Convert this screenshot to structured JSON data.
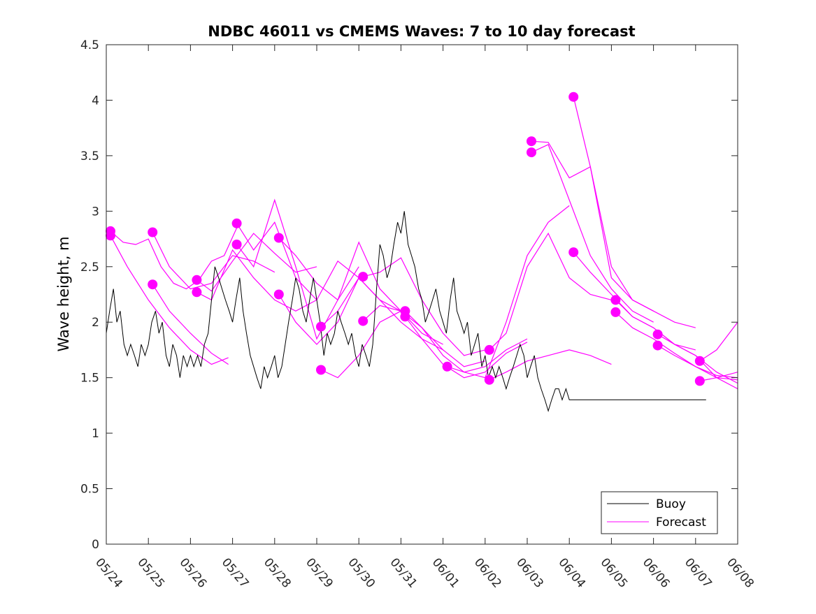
{
  "chart_data": {
    "type": "line",
    "title": "NDBC 46011 vs CMEMS Waves: 7 to 10 day forecast",
    "xlabel": "",
    "ylabel": "Wave height, m",
    "xlim": [
      "05/24",
      "06/08"
    ],
    "ylim": [
      0,
      4.5
    ],
    "grid": false,
    "legend": {
      "placement": "bottom-right",
      "entries": [
        "Buoy",
        "Forecast"
      ]
    },
    "x_tick_labels": [
      "05/24",
      "05/25",
      "05/26",
      "05/27",
      "05/28",
      "05/29",
      "05/30",
      "05/31",
      "06/01",
      "06/02",
      "06/03",
      "06/04",
      "06/05",
      "06/06",
      "06/07",
      "06/08"
    ],
    "y_ticks": [
      0,
      0.5,
      1,
      1.5,
      2,
      2.5,
      3,
      3.5,
      4,
      4.5
    ],
    "y_tick_labels": [
      "0",
      "0.5",
      "1",
      "1.5",
      "2",
      "2.5",
      "3",
      "3.5",
      "4",
      "4.5"
    ],
    "x_unit": "days since 05/24",
    "colors": {
      "buoy": "#000000",
      "forecast": "#ff00ff"
    },
    "buoy": {
      "name": "Buoy",
      "x": [
        0,
        0.08,
        0.17,
        0.25,
        0.33,
        0.42,
        0.5,
        0.58,
        0.67,
        0.75,
        0.83,
        0.92,
        1.0,
        1.08,
        1.17,
        1.25,
        1.33,
        1.42,
        1.5,
        1.58,
        1.67,
        1.75,
        1.83,
        1.92,
        2.0,
        2.08,
        2.17,
        2.25,
        2.33,
        2.42,
        2.5,
        2.58,
        2.67,
        2.75,
        2.83,
        2.92,
        3.0,
        3.08,
        3.17,
        3.25,
        3.33,
        3.42,
        3.5,
        3.58,
        3.67,
        3.75,
        3.83,
        3.92,
        4.0,
        4.08,
        4.17,
        4.25,
        4.33,
        4.42,
        4.5,
        4.58,
        4.67,
        4.75,
        4.83,
        4.92,
        5.0,
        5.08,
        5.17,
        5.25,
        5.33,
        5.42,
        5.5,
        5.58,
        5.67,
        5.75,
        5.83,
        5.92,
        6.0,
        6.08,
        6.17,
        6.25,
        6.33,
        6.42,
        6.5,
        6.58,
        6.67,
        6.75,
        6.83,
        6.92,
        7.0,
        7.08,
        7.17,
        7.25,
        7.33,
        7.42,
        7.5,
        7.58,
        7.67,
        7.75,
        7.83,
        7.92,
        8.0,
        8.08,
        8.17,
        8.25,
        8.33,
        8.42,
        8.5,
        8.58,
        8.67,
        8.75,
        8.83,
        8.92,
        9.0,
        9.08,
        9.17,
        9.25,
        9.33,
        9.42,
        9.5,
        9.58,
        9.67,
        9.75,
        9.83,
        9.92,
        10.0,
        10.08,
        10.17,
        10.25,
        10.33,
        10.42,
        10.5,
        10.58,
        10.67,
        10.75,
        10.83,
        10.92,
        11.0,
        11.08,
        11.17,
        11.25,
        11.33,
        11.42,
        11.5,
        11.58,
        11.67,
        11.75,
        11.83,
        11.92,
        12.0,
        12.08,
        12.17,
        12.25,
        12.33,
        12.42,
        12.5,
        12.58,
        12.67,
        12.75,
        12.83,
        12.92,
        13.0,
        13.08,
        13.17,
        13.25,
        13.33,
        13.42,
        13.5,
        13.58,
        13.67,
        13.75,
        13.83,
        13.92,
        14.0,
        14.08,
        14.17,
        14.25
      ],
      "values": [
        1.9,
        2.1,
        2.3,
        2.0,
        2.1,
        1.8,
        1.7,
        1.8,
        1.7,
        1.6,
        1.8,
        1.7,
        1.8,
        2.0,
        2.1,
        1.9,
        2.0,
        1.7,
        1.6,
        1.8,
        1.7,
        1.5,
        1.7,
        1.6,
        1.7,
        1.6,
        1.7,
        1.6,
        1.8,
        1.9,
        2.2,
        2.5,
        2.4,
        2.3,
        2.2,
        2.1,
        2.0,
        2.2,
        2.4,
        2.1,
        1.9,
        1.7,
        1.6,
        1.5,
        1.4,
        1.6,
        1.5,
        1.6,
        1.7,
        1.5,
        1.6,
        1.8,
        2.0,
        2.2,
        2.4,
        2.3,
        2.1,
        2.0,
        2.2,
        2.4,
        2.2,
        2.0,
        1.7,
        1.9,
        1.8,
        1.9,
        2.1,
        2.0,
        1.9,
        1.8,
        1.9,
        1.7,
        1.6,
        1.8,
        1.7,
        1.6,
        1.8,
        2.3,
        2.7,
        2.6,
        2.4,
        2.5,
        2.7,
        2.9,
        2.8,
        3.0,
        2.7,
        2.6,
        2.5,
        2.3,
        2.2,
        2.0,
        2.1,
        2.2,
        2.3,
        2.1,
        2.0,
        1.9,
        2.2,
        2.4,
        2.1,
        2.0,
        1.9,
        2.0,
        1.7,
        1.8,
        1.9,
        1.6,
        1.7,
        1.5,
        1.6,
        1.5,
        1.6,
        1.5,
        1.4,
        1.5,
        1.6,
        1.7,
        1.8,
        1.7,
        1.5,
        1.6,
        1.7,
        1.5,
        1.4,
        1.3,
        1.2,
        1.3,
        1.4,
        1.4,
        1.3,
        1.4,
        1.3,
        1.3,
        1.3,
        1.3,
        1.3,
        1.3,
        1.3,
        1.3,
        1.3,
        1.3,
        1.3,
        1.3,
        1.3,
        1.3,
        1.3,
        1.3,
        1.3,
        1.3,
        1.3,
        1.3,
        1.3,
        1.3,
        1.3,
        1.3,
        1.3,
        1.3,
        1.3,
        1.3,
        1.3,
        1.3,
        1.3,
        1.3,
        1.3,
        1.3,
        1.3,
        1.3,
        1.3,
        1.3,
        1.3,
        1.3
      ]
    },
    "forecast_series": [
      {
        "name": "Forecast",
        "x": [
          0.1,
          0.4,
          0.7,
          1.0,
          1.3,
          1.6,
          1.9,
          2.2,
          2.5,
          2.8,
          3.1
        ],
        "values": [
          2.82,
          2.72,
          2.7,
          2.75,
          2.5,
          2.35,
          2.3,
          2.38,
          2.55,
          2.6,
          2.85
        ]
      },
      {
        "name": "Forecast",
        "x": [
          0.1,
          0.5,
          1.0,
          1.5,
          2.0,
          2.5,
          2.9
        ],
        "values": [
          2.78,
          2.5,
          2.2,
          1.95,
          1.75,
          1.62,
          1.68
        ]
      },
      {
        "name": "Forecast",
        "x": [
          1.1,
          1.5,
          2.0,
          2.5,
          3.0,
          3.5,
          4.0
        ],
        "values": [
          2.81,
          2.5,
          2.3,
          2.35,
          2.6,
          2.55,
          2.45
        ]
      },
      {
        "name": "Forecast",
        "x": [
          1.1,
          1.5,
          2.0,
          2.5,
          2.9
        ],
        "values": [
          2.34,
          2.1,
          1.9,
          1.72,
          1.62
        ]
      },
      {
        "name": "Forecast",
        "x": [
          2.15,
          2.5,
          3.0,
          3.5,
          4.0,
          4.5,
          5.0
        ],
        "values": [
          2.38,
          2.28,
          2.55,
          2.8,
          2.62,
          2.45,
          2.5
        ]
      },
      {
        "name": "Forecast",
        "x": [
          2.15,
          2.5,
          3.0,
          3.5,
          4.0,
          4.5,
          5.0
        ],
        "values": [
          2.27,
          2.2,
          2.65,
          2.4,
          2.2,
          2.1,
          2.2
        ]
      },
      {
        "name": "Forecast",
        "x": [
          3.1,
          3.5,
          4.0,
          4.5,
          5.0,
          5.5,
          6.0
        ],
        "values": [
          2.89,
          2.65,
          2.9,
          2.4,
          2.2,
          2.55,
          2.4
        ]
      },
      {
        "name": "Forecast",
        "x": [
          3.1,
          3.5,
          4.0,
          4.5,
          5.0,
          5.5,
          6.0
        ],
        "values": [
          2.7,
          2.5,
          3.1,
          2.5,
          1.85,
          2.2,
          2.5
        ]
      },
      {
        "name": "Forecast",
        "x": [
          4.1,
          4.5,
          5.0,
          5.5,
          6.0,
          6.5,
          7.0
        ],
        "values": [
          2.76,
          2.6,
          2.35,
          2.2,
          2.72,
          2.3,
          2.1
        ]
      },
      {
        "name": "Forecast",
        "x": [
          4.1,
          4.5,
          5.0,
          5.5,
          6.0,
          6.5,
          7.0
        ],
        "values": [
          2.25,
          2.0,
          1.8,
          2.0,
          2.4,
          2.2,
          2.1
        ]
      },
      {
        "name": "Forecast",
        "x": [
          5.1,
          5.5,
          6.0,
          6.5,
          7.0,
          7.5,
          8.0
        ],
        "values": [
          1.96,
          2.1,
          2.4,
          2.2,
          2.0,
          1.85,
          1.75
        ]
      },
      {
        "name": "Forecast",
        "x": [
          5.1,
          5.5,
          6.0,
          6.5,
          7.0,
          7.5,
          8.0
        ],
        "values": [
          1.57,
          1.5,
          1.7,
          2.0,
          2.1,
          1.9,
          1.8
        ]
      },
      {
        "name": "Forecast",
        "x": [
          6.1,
          6.5,
          7.0,
          7.5,
          8.0,
          8.5,
          9.0
        ],
        "values": [
          2.41,
          2.45,
          2.58,
          2.2,
          1.9,
          1.7,
          1.75
        ]
      },
      {
        "name": "Forecast",
        "x": [
          6.1,
          6.5,
          7.0,
          7.5,
          8.0,
          8.5,
          9.0
        ],
        "values": [
          2.01,
          2.15,
          2.1,
          1.95,
          1.75,
          1.6,
          1.65
        ]
      },
      {
        "name": "Forecast",
        "x": [
          7.1,
          7.5,
          8.0,
          8.5,
          9.0,
          9.5,
          10.0
        ],
        "values": [
          2.1,
          1.95,
          1.7,
          1.55,
          1.6,
          1.75,
          1.85
        ]
      },
      {
        "name": "Forecast",
        "x": [
          7.1,
          7.5,
          8.0,
          8.5,
          9.0,
          9.5,
          10.0
        ],
        "values": [
          2.05,
          1.85,
          1.62,
          1.5,
          1.55,
          1.72,
          1.82
        ]
      },
      {
        "name": "Forecast",
        "x": [
          8.1,
          8.5,
          9.0,
          9.5,
          10.0,
          10.5,
          11.0
        ],
        "values": [
          1.6,
          1.55,
          1.5,
          2.0,
          2.6,
          2.9,
          3.05
        ]
      },
      {
        "name": "Forecast",
        "x": [
          9.1,
          9.5,
          10.0,
          10.5,
          11.0,
          11.5,
          12.0
        ],
        "values": [
          1.75,
          1.9,
          2.5,
          2.8,
          2.4,
          2.25,
          2.2
        ]
      },
      {
        "name": "Forecast",
        "x": [
          9.1,
          9.5,
          10.0,
          10.5,
          11.0,
          11.5,
          12.0
        ],
        "values": [
          1.48,
          1.55,
          1.65,
          1.7,
          1.75,
          1.7,
          1.62
        ]
      },
      {
        "name": "Forecast",
        "x": [
          10.1,
          10.5,
          11.0,
          11.5,
          12.0,
          12.5,
          13.0
        ],
        "values": [
          3.63,
          3.62,
          3.3,
          3.4,
          2.4,
          2.2,
          2.1
        ]
      },
      {
        "name": "Forecast",
        "x": [
          10.1,
          10.5,
          11.0,
          11.5,
          12.0,
          12.5,
          13.0
        ],
        "values": [
          3.53,
          3.6,
          3.1,
          2.6,
          2.3,
          2.1,
          2.0
        ]
      },
      {
        "name": "Forecast",
        "x": [
          11.1,
          11.5,
          12.0,
          12.5,
          13.0,
          13.5,
          14.0
        ],
        "values": [
          4.03,
          3.4,
          2.5,
          2.2,
          2.1,
          2.0,
          1.95
        ]
      },
      {
        "name": "Forecast",
        "x": [
          11.1,
          11.5,
          12.0,
          12.5,
          13.0,
          13.5,
          14.0
        ],
        "values": [
          2.63,
          2.45,
          2.25,
          2.05,
          1.95,
          1.8,
          1.75
        ]
      },
      {
        "name": "Forecast",
        "x": [
          12.1,
          12.5,
          13.0,
          13.5,
          14.0,
          14.5,
          15.0
        ],
        "values": [
          2.2,
          2.05,
          1.95,
          1.8,
          1.7,
          1.55,
          1.45
        ]
      },
      {
        "name": "Forecast",
        "x": [
          12.1,
          12.5,
          13.0,
          13.5,
          14.0,
          14.5,
          15.0
        ],
        "values": [
          2.09,
          1.95,
          1.85,
          1.72,
          1.6,
          1.5,
          1.4
        ]
      },
      {
        "name": "Forecast",
        "x": [
          13.1,
          13.5,
          14.0,
          14.5,
          15.0
        ],
        "values": [
          1.89,
          1.8,
          1.7,
          1.5,
          1.48
        ]
      },
      {
        "name": "Forecast",
        "x": [
          13.1,
          13.5,
          14.0,
          14.5,
          15.0
        ],
        "values": [
          1.79,
          1.7,
          1.6,
          1.52,
          1.5
        ]
      },
      {
        "name": "Forecast",
        "x": [
          14.1,
          14.5,
          15.0
        ],
        "values": [
          1.65,
          1.75,
          2.0
        ]
      },
      {
        "name": "Forecast",
        "x": [
          14.1,
          14.5,
          15.0
        ],
        "values": [
          1.47,
          1.5,
          1.55
        ]
      }
    ]
  }
}
